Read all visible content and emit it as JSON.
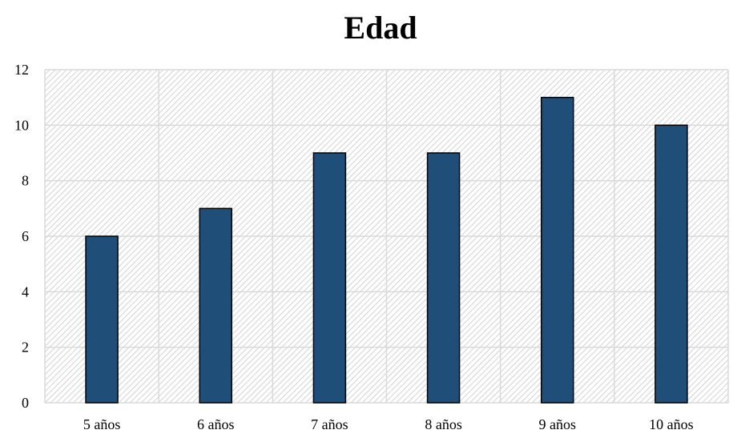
{
  "chart_data": {
    "type": "bar",
    "title": "Edad",
    "categories": [
      "5 años",
      "6 años",
      "7 años",
      "8 años",
      "9 años",
      "10 años"
    ],
    "values": [
      6,
      7,
      9,
      9,
      11,
      10
    ],
    "ylim": [
      0,
      12
    ],
    "yticks": [
      "0",
      "2",
      "4",
      "6",
      "8",
      "10",
      "12"
    ],
    "grid": true,
    "background_pattern": "diagonal-hatch",
    "bar_color": "#1f4e79",
    "bar_outline_color": "#000000",
    "grid_color": "#d9d9d9",
    "hatch_color": "#c8c8c8"
  }
}
